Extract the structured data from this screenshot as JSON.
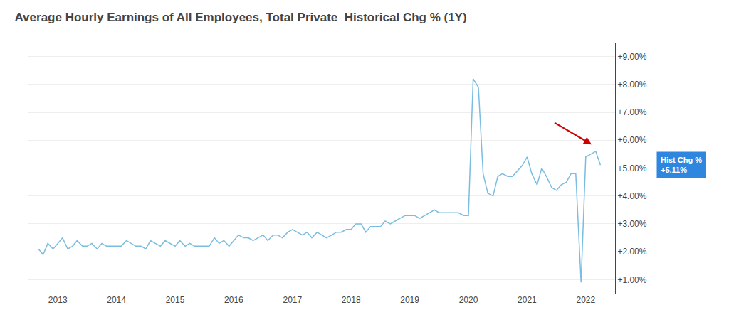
{
  "chart_data": {
    "type": "line",
    "title": "Average Hourly Earnings of All Employees, Total Private  Historical Chg % (1Y)",
    "x": [
      2012.67,
      2012.75,
      2012.83,
      2012.92,
      2013.0,
      2013.08,
      2013.17,
      2013.25,
      2013.33,
      2013.42,
      2013.5,
      2013.58,
      2013.67,
      2013.75,
      2013.83,
      2013.92,
      2014.0,
      2014.08,
      2014.17,
      2014.25,
      2014.33,
      2014.42,
      2014.5,
      2014.58,
      2014.67,
      2014.75,
      2014.83,
      2014.92,
      2015.0,
      2015.08,
      2015.17,
      2015.25,
      2015.33,
      2015.42,
      2015.5,
      2015.58,
      2015.67,
      2015.75,
      2015.83,
      2015.92,
      2016.0,
      2016.08,
      2016.17,
      2016.25,
      2016.33,
      2016.42,
      2016.5,
      2016.58,
      2016.67,
      2016.75,
      2016.83,
      2016.92,
      2017.0,
      2017.08,
      2017.17,
      2017.25,
      2017.33,
      2017.42,
      2017.5,
      2017.58,
      2017.67,
      2017.75,
      2017.83,
      2017.92,
      2018.0,
      2018.08,
      2018.17,
      2018.25,
      2018.33,
      2018.42,
      2018.5,
      2018.58,
      2018.67,
      2018.75,
      2018.83,
      2018.92,
      2019.0,
      2019.08,
      2019.17,
      2019.25,
      2019.33,
      2019.42,
      2019.5,
      2019.58,
      2019.67,
      2019.75,
      2019.83,
      2019.92,
      2020.0,
      2020.08,
      2020.17,
      2020.25,
      2020.33,
      2020.42,
      2020.5,
      2020.58,
      2020.67,
      2020.75,
      2020.83,
      2020.92,
      2021.0,
      2021.08,
      2021.17,
      2021.25,
      2021.33,
      2021.42,
      2021.5,
      2021.58,
      2021.67,
      2021.75,
      2021.83,
      2021.92,
      2022.0,
      2022.08,
      2022.17,
      2022.25
    ],
    "values": [
      2.1,
      1.9,
      2.3,
      2.1,
      2.3,
      2.5,
      2.1,
      2.2,
      2.4,
      2.2,
      2.2,
      2.3,
      2.1,
      2.3,
      2.2,
      2.2,
      2.2,
      2.2,
      2.4,
      2.3,
      2.2,
      2.2,
      2.1,
      2.4,
      2.3,
      2.2,
      2.4,
      2.3,
      2.2,
      2.4,
      2.2,
      2.3,
      2.2,
      2.2,
      2.2,
      2.2,
      2.5,
      2.3,
      2.4,
      2.2,
      2.4,
      2.6,
      2.5,
      2.5,
      2.4,
      2.5,
      2.6,
      2.4,
      2.6,
      2.6,
      2.5,
      2.7,
      2.8,
      2.7,
      2.6,
      2.7,
      2.5,
      2.7,
      2.6,
      2.5,
      2.6,
      2.7,
      2.7,
      2.8,
      2.8,
      3.0,
      3.0,
      2.7,
      2.9,
      2.9,
      2.9,
      3.1,
      3.0,
      3.1,
      3.2,
      3.3,
      3.3,
      3.3,
      3.2,
      3.3,
      3.4,
      3.5,
      3.4,
      3.4,
      3.4,
      3.4,
      3.4,
      3.3,
      3.3,
      8.2,
      7.9,
      4.8,
      4.1,
      4.0,
      4.7,
      4.8,
      4.7,
      4.7,
      4.9,
      5.1,
      5.4,
      4.8,
      4.4,
      5.0,
      4.7,
      4.3,
      4.2,
      4.4,
      4.5,
      4.8,
      4.8,
      0.9,
      5.4,
      5.5,
      5.6,
      5.11
    ],
    "color": "#7bbde0",
    "xlim": [
      2012.5,
      2022.5
    ],
    "xticks": [
      2013,
      2014,
      2015,
      2016,
      2017,
      2018,
      2019,
      2020,
      2021,
      2022
    ],
    "ylim": [
      0.5,
      9.5
    ],
    "yticks": [
      {
        "value": 1.0,
        "label": "+1.00%"
      },
      {
        "value": 2.0,
        "label": "+2.00%"
      },
      {
        "value": 3.0,
        "label": "+3.00%"
      },
      {
        "value": 4.0,
        "label": "+4.00%"
      },
      {
        "value": 5.0,
        "label": "+5.00%"
      },
      {
        "value": 6.0,
        "label": "+6.00%"
      },
      {
        "value": 7.0,
        "label": "+7.00%"
      },
      {
        "value": 8.0,
        "label": "+8.00%"
      },
      {
        "value": 9.0,
        "label": "+9.00%"
      }
    ],
    "grid": true,
    "annotations": [
      {
        "text": "Hist Chg %\n+5.11%",
        "y": 5.11,
        "color": "#2e86de"
      },
      {
        "type": "arrow",
        "x": 2022.1,
        "y": 5.85,
        "from_x": 2021.45,
        "from_y": 6.65,
        "color": "#cc0000"
      }
    ]
  }
}
